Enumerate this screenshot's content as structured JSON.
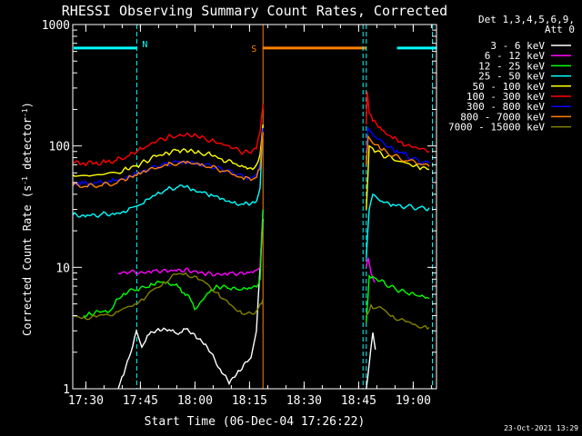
{
  "chart_data": {
    "type": "line",
    "title": "RHESSI Observing Summary Count Rates, Corrected",
    "xlabel": "Start Time (06-Dec-04 17:26:22)",
    "ylabel_parts": [
      "Corrected Count Rate (s",
      "-1",
      " detector",
      "-1",
      ")"
    ],
    "yscale": "log",
    "ylim": [
      1,
      1000
    ],
    "xlim_minutes": [
      0,
      100
    ],
    "x_unit": "minutes after 17:26:22",
    "x_ticks": [
      {
        "label": "17:30",
        "x": 3.6
      },
      {
        "label": "17:45",
        "x": 18.6
      },
      {
        "label": "18:00",
        "x": 33.6
      },
      {
        "label": "18:15",
        "x": 48.6
      },
      {
        "label": "18:30",
        "x": 63.6
      },
      {
        "label": "18:45",
        "x": 78.6
      },
      {
        "label": "19:00",
        "x": 93.6
      }
    ],
    "y_ticks": [
      {
        "label": "1",
        "v": 1
      },
      {
        "label": "10",
        "v": 10
      },
      {
        "label": "100",
        "v": 100
      },
      {
        "label": "1000",
        "v": 1000
      }
    ],
    "legend_header": [
      "Det 1,3,4,5,6,9,",
      "Att 0"
    ],
    "legend_placement": "right-top",
    "markers": {
      "night": [
        {
          "start": 0,
          "end": 17.6,
          "label": "N"
        },
        {
          "start": 88.9,
          "end": 100,
          "label": ""
        }
      ],
      "saa": [
        {
          "start": 52.3,
          "end": 80.7,
          "label": "S"
        }
      ],
      "bar_level": 640,
      "dashed_lines_x": [
        17.6,
        79.8,
        80.7,
        98.9
      ],
      "solid_line_x": 52.3
    },
    "series": [
      {
        "name": "3 - 6 keV",
        "color": "#ffffff",
        "points": [
          [
            12.5,
            1
          ],
          [
            14,
            1.3
          ],
          [
            16,
            2
          ],
          [
            17.5,
            3
          ],
          [
            19,
            2.2
          ],
          [
            21,
            2.8
          ],
          [
            24,
            3
          ],
          [
            27,
            3
          ],
          [
            29,
            2.8
          ],
          [
            31,
            3.1
          ],
          [
            34,
            2.6
          ],
          [
            37,
            2.2
          ],
          [
            40,
            1.5
          ],
          [
            43,
            1.1
          ],
          [
            46,
            1.4
          ],
          [
            49,
            1.8
          ],
          [
            50.5,
            3
          ],
          [
            51.5,
            10
          ],
          [
            52.3,
            25
          ],
          [
            80.7,
            1
          ],
          [
            81.5,
            1.6
          ],
          [
            82.5,
            2.9
          ],
          [
            83.2,
            2.1
          ]
        ]
      },
      {
        "name": "6 - 12 keV",
        "color": "#ff00ff",
        "points": [
          [
            12.5,
            9
          ],
          [
            14,
            9.2
          ],
          [
            16,
            9.3
          ],
          [
            19,
            9.2
          ],
          [
            22,
            9.4
          ],
          [
            25,
            9.6
          ],
          [
            28,
            9.5
          ],
          [
            31,
            9.7
          ],
          [
            34,
            9.3
          ],
          [
            37,
            9
          ],
          [
            40,
            8.9
          ],
          [
            43,
            9
          ],
          [
            46,
            9.1
          ],
          [
            49,
            9.2
          ],
          [
            50.5,
            9.5
          ],
          [
            51.5,
            10
          ],
          [
            52.3,
            30
          ],
          [
            80.7,
            10
          ],
          [
            81.2,
            12
          ],
          [
            82,
            9
          ],
          [
            83,
            7.5
          ]
        ]
      },
      {
        "name": "12 - 25 keV",
        "color": "#00ff00",
        "points": [
          [
            3,
            4
          ],
          [
            5,
            4.1
          ],
          [
            8,
            4.3
          ],
          [
            10,
            4.3
          ],
          [
            12.5,
            5.5
          ],
          [
            14,
            6.1
          ],
          [
            17.6,
            6.5
          ],
          [
            20,
            6.8
          ],
          [
            22,
            7.2
          ],
          [
            25,
            7.6
          ],
          [
            27,
            7.1
          ],
          [
            28.5,
            7.3
          ],
          [
            30,
            6.2
          ],
          [
            32,
            5.8
          ],
          [
            33.5,
            4.5
          ],
          [
            34.5,
            4.8
          ],
          [
            36,
            5.5
          ],
          [
            38,
            6.5
          ],
          [
            40,
            6.9
          ],
          [
            43,
            6.7
          ],
          [
            46,
            6.5
          ],
          [
            49,
            6.7
          ],
          [
            50.5,
            6.9
          ],
          [
            51.5,
            8
          ],
          [
            52.3,
            30
          ],
          [
            80.7,
            3.5
          ],
          [
            81.5,
            8.5
          ],
          [
            83,
            8.2
          ],
          [
            86,
            7.2
          ],
          [
            89,
            6.5
          ],
          [
            92,
            6.1
          ],
          [
            95,
            5.8
          ],
          [
            98,
            5.5
          ]
        ]
      },
      {
        "name": "25 - 50 keV",
        "color": "#00ffff",
        "points": [
          [
            0,
            27
          ],
          [
            4,
            27
          ],
          [
            8,
            27.5
          ],
          [
            12,
            28
          ],
          [
            15,
            29
          ],
          [
            17.6,
            32
          ],
          [
            20,
            36
          ],
          [
            23,
            40
          ],
          [
            26,
            44
          ],
          [
            29,
            46
          ],
          [
            31,
            46
          ],
          [
            33,
            44
          ],
          [
            35,
            42
          ],
          [
            38,
            40
          ],
          [
            41,
            37
          ],
          [
            44,
            34
          ],
          [
            47,
            33
          ],
          [
            49,
            33.5
          ],
          [
            50.5,
            35
          ],
          [
            51.5,
            45
          ],
          [
            52.3,
            150
          ],
          [
            80.7,
            12
          ],
          [
            81.5,
            30
          ],
          [
            82.5,
            40
          ],
          [
            85,
            35
          ],
          [
            88,
            33
          ],
          [
            92,
            32
          ],
          [
            95,
            31
          ],
          [
            98,
            31
          ]
        ]
      },
      {
        "name": "50 - 100 keV",
        "color": "#ffff00",
        "points": [
          [
            0,
            58
          ],
          [
            4,
            57
          ],
          [
            8,
            58
          ],
          [
            12,
            60
          ],
          [
            15,
            64
          ],
          [
            17.6,
            69
          ],
          [
            20,
            75
          ],
          [
            23,
            82
          ],
          [
            26,
            88
          ],
          [
            29,
            92
          ],
          [
            31,
            93
          ],
          [
            33,
            91
          ],
          [
            35,
            88
          ],
          [
            38,
            84
          ],
          [
            41,
            78
          ],
          [
            44,
            72
          ],
          [
            47,
            67
          ],
          [
            49,
            66
          ],
          [
            50.5,
            70
          ],
          [
            51.5,
            85
          ],
          [
            52.3,
            150
          ],
          [
            80.7,
            30
          ],
          [
            81.5,
            100
          ],
          [
            82.5,
            95
          ],
          [
            85,
            85
          ],
          [
            88,
            78
          ],
          [
            92,
            72
          ],
          [
            95,
            67
          ],
          [
            98,
            64
          ]
        ]
      },
      {
        "name": "100 - 300 keV",
        "color": "#ff0000",
        "points": [
          [
            0,
            73
          ],
          [
            4,
            72
          ],
          [
            8,
            73
          ],
          [
            12,
            76
          ],
          [
            15,
            82
          ],
          [
            17.6,
            90
          ],
          [
            20,
            98
          ],
          [
            23,
            108
          ],
          [
            26,
            117
          ],
          [
            29,
            122
          ],
          [
            31,
            123
          ],
          [
            33,
            120
          ],
          [
            35,
            116
          ],
          [
            38,
            111
          ],
          [
            41,
            104
          ],
          [
            44,
            95
          ],
          [
            47,
            88
          ],
          [
            49,
            87
          ],
          [
            50.5,
            95
          ],
          [
            51.5,
            130
          ],
          [
            52.3,
            220
          ],
          [
            80.7,
            150
          ],
          [
            81,
            280
          ],
          [
            81.5,
            185
          ],
          [
            82.5,
            160
          ],
          [
            85,
            135
          ],
          [
            88,
            115
          ],
          [
            92,
            102
          ],
          [
            95,
            95
          ],
          [
            98,
            90
          ]
        ]
      },
      {
        "name": "300 - 800 keV",
        "color": "#0000ff",
        "points": [
          [
            0,
            50
          ],
          [
            4,
            49
          ],
          [
            8,
            50
          ],
          [
            12,
            52
          ],
          [
            15,
            56
          ],
          [
            17.6,
            60
          ],
          [
            20,
            64
          ],
          [
            23,
            68
          ],
          [
            26,
            72
          ],
          [
            29,
            74
          ],
          [
            31,
            75
          ],
          [
            33,
            74
          ],
          [
            35,
            72
          ],
          [
            38,
            69
          ],
          [
            41,
            65
          ],
          [
            44,
            61
          ],
          [
            47,
            56
          ],
          [
            49,
            55
          ],
          [
            50.5,
            58
          ],
          [
            51.5,
            70
          ],
          [
            52.3,
            140
          ],
          [
            80.7,
            90
          ],
          [
            81.2,
            140
          ],
          [
            82.5,
            125
          ],
          [
            85,
            110
          ],
          [
            88,
            95
          ],
          [
            92,
            83
          ],
          [
            95,
            76
          ],
          [
            98,
            72
          ]
        ]
      },
      {
        "name": "800 - 7000 keV",
        "color": "#ff8000",
        "points": [
          [
            0,
            47
          ],
          [
            4,
            46
          ],
          [
            8,
            47
          ],
          [
            12,
            49
          ],
          [
            15,
            53
          ],
          [
            17.6,
            57
          ],
          [
            20,
            61
          ],
          [
            23,
            65
          ],
          [
            26,
            69
          ],
          [
            29,
            71
          ],
          [
            31,
            72
          ],
          [
            33,
            71
          ],
          [
            35,
            69
          ],
          [
            38,
            66
          ],
          [
            41,
            62
          ],
          [
            44,
            58
          ],
          [
            47,
            53
          ],
          [
            49,
            52
          ],
          [
            50.5,
            55
          ],
          [
            51.5,
            65
          ],
          [
            52.3,
            130
          ],
          [
            80.7,
            70
          ],
          [
            81.2,
            120
          ],
          [
            82.5,
            105
          ],
          [
            85,
            92
          ],
          [
            88,
            82
          ],
          [
            92,
            75
          ],
          [
            95,
            71
          ],
          [
            98,
            68
          ]
        ]
      },
      {
        "name": "7000 - 15000 keV",
        "color": "#808000",
        "points": [
          [
            0,
            4
          ],
          [
            3,
            3.9
          ],
          [
            6,
            4
          ],
          [
            9,
            4.1
          ],
          [
            12.5,
            4.3
          ],
          [
            14,
            4.6
          ],
          [
            17,
            5
          ],
          [
            19,
            5.5
          ],
          [
            22,
            6.5
          ],
          [
            25,
            7.6
          ],
          [
            28,
            8.8
          ],
          [
            31,
            9
          ],
          [
            34,
            8.4
          ],
          [
            37,
            7.3
          ],
          [
            40,
            6.2
          ],
          [
            43,
            5
          ],
          [
            46,
            4.4
          ],
          [
            49,
            4.2
          ],
          [
            50.5,
            4.4
          ],
          [
            51.5,
            5
          ],
          [
            52.3,
            5.5
          ],
          [
            80.7,
            4
          ],
          [
            82,
            4.9
          ],
          [
            85,
            4.6
          ],
          [
            88,
            4
          ],
          [
            91,
            3.7
          ],
          [
            94,
            3.4
          ],
          [
            97,
            3.3
          ],
          [
            98,
            3.2
          ]
        ]
      }
    ]
  },
  "footer": {
    "timestamp": "23-Oct-2021 13:29"
  }
}
